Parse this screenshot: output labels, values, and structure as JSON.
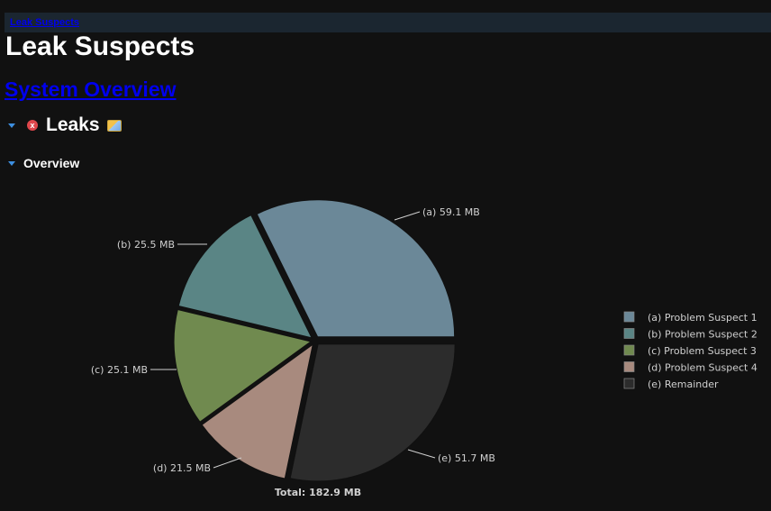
{
  "breadcrumb": {
    "label": "Leak Suspects"
  },
  "page": {
    "title": "Leak Suspects",
    "overview_link": "System Overview"
  },
  "sections": {
    "leaks": {
      "title": "Leaks",
      "error_icon": "x"
    },
    "overview": {
      "title": "Overview"
    }
  },
  "chart_data": {
    "type": "pie",
    "total_label": "Total: 182.9 MB",
    "slices": [
      {
        "label": "(a)  59.1 MB",
        "legend": "(a)  Problem Suspect 1",
        "value": 59.1,
        "color": "#6b8898"
      },
      {
        "label": "(b)  25.5 MB",
        "legend": "(b)  Problem Suspect 2",
        "value": 25.5,
        "color": "#5a8585"
      },
      {
        "label": "(c)  25.1 MB",
        "legend": "(c)  Problem Suspect 3",
        "value": 25.1,
        "color": "#708a4f"
      },
      {
        "label": "(d)  21.5 MB",
        "legend": "(d)  Problem Suspect 4",
        "value": 21.5,
        "color": "#a88a7e"
      },
      {
        "label": "(e)  51.7 MB",
        "legend": "(e)  Remainder",
        "value": 51.7,
        "color": "#2c2c2c"
      }
    ],
    "start": "3 o'clock",
    "direction": "counter-clockwise",
    "exploded": true,
    "legend_position": "right"
  }
}
